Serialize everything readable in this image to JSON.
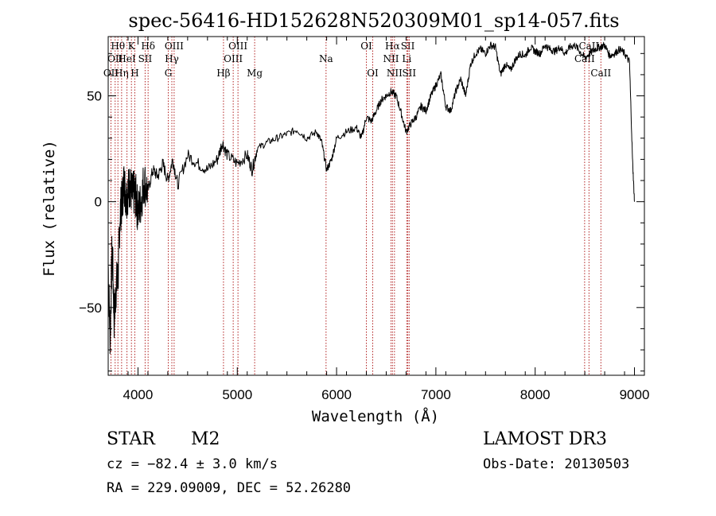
{
  "chart_data": {
    "type": "line",
    "title": "spec-56416-HD152628N520309M01_sp14-057.fits",
    "xlabel": "Wavelength (Å)",
    "ylabel": "Flux (relative)",
    "xlim": [
      3700,
      9100
    ],
    "ylim": [
      -82,
      78
    ],
    "xticks": [
      4000,
      5000,
      6000,
      7000,
      8000,
      9000
    ],
    "yticks": [
      -50,
      0,
      50
    ],
    "grid": false,
    "line_color": "#000000",
    "marker_color": "#b22222",
    "series": [
      {
        "x": [
          3700,
          3720,
          3740,
          3760,
          3780,
          3800,
          3820,
          3840,
          3860,
          3880,
          3900,
          3920,
          3940,
          3960,
          3980,
          4000,
          4030,
          4060,
          4100,
          4150,
          4200,
          4250,
          4300,
          4350,
          4400,
          4500,
          4600,
          4700,
          4800,
          4850,
          4900,
          5000,
          5100,
          5150,
          5200,
          5300,
          5400,
          5500,
          5600,
          5700,
          5800,
          5850,
          5900,
          5950,
          6000,
          6100,
          6200,
          6250,
          6300,
          6350,
          6400,
          6450,
          6500,
          6550,
          6600,
          6650,
          6700,
          6750,
          6800,
          6850,
          6900,
          6950,
          7000,
          7050,
          7100,
          7150,
          7200,
          7250,
          7300,
          7350,
          7400,
          7450,
          7500,
          7550,
          7600,
          7650,
          7700,
          7750,
          7800,
          7850,
          7900,
          7950,
          8000,
          8050,
          8100,
          8150,
          8200,
          8250,
          8300,
          8350,
          8400,
          8450,
          8500,
          8550,
          8600,
          8650,
          8700,
          8750,
          8800,
          8850,
          8900,
          8950,
          8980,
          9000
        ],
        "y": [
          -30,
          -65,
          -20,
          -55,
          -40,
          -35,
          -5,
          0,
          10,
          2,
          5,
          8,
          3,
          4,
          2,
          -5,
          0,
          10,
          5,
          15,
          12,
          18,
          10,
          20,
          8,
          22,
          18,
          15,
          20,
          28,
          22,
          18,
          22,
          15,
          25,
          28,
          30,
          32,
          34,
          30,
          33,
          28,
          15,
          20,
          30,
          33,
          35,
          30,
          40,
          38,
          43,
          48,
          50,
          52,
          50,
          42,
          33,
          37,
          40,
          45,
          43,
          50,
          55,
          60,
          45,
          43,
          52,
          58,
          50,
          65,
          70,
          72,
          70,
          74,
          73,
          60,
          65,
          62,
          67,
          70,
          69,
          73,
          71,
          70,
          74,
          72,
          71,
          73,
          70,
          73,
          74,
          71,
          68,
          70,
          72,
          73,
          74,
          69,
          70,
          72,
          70,
          66,
          20,
          0
        ]
      }
    ],
    "lines": [
      {
        "x": 3728,
        "label": "OII",
        "row": 3
      },
      {
        "x": 3770,
        "label": "OII",
        "row": 2
      },
      {
        "x": 3798,
        "label": "Hθ",
        "row": 1
      },
      {
        "x": 3835,
        "label": "Hη",
        "row": 3
      },
      {
        "x": 3889,
        "label": "HeI",
        "row": 2
      },
      {
        "x": 3934,
        "label": "K",
        "row": 1
      },
      {
        "x": 3968,
        "label": "H",
        "row": 3
      },
      {
        "x": 4072,
        "label": "SII",
        "row": 2
      },
      {
        "x": 4102,
        "label": "Hδ",
        "row": 1
      },
      {
        "x": 4305,
        "label": "G",
        "row": 3
      },
      {
        "x": 4341,
        "label": "Hγ",
        "row": 2
      },
      {
        "x": 4364,
        "label": "OIII",
        "row": 1
      },
      {
        "x": 4861,
        "label": "Hβ",
        "row": 3
      },
      {
        "x": 4959,
        "label": "OIII",
        "row": 2
      },
      {
        "x": 5007,
        "label": "OIII",
        "row": 1
      },
      {
        "x": 5175,
        "label": "Mg",
        "row": 3
      },
      {
        "x": 5894,
        "label": "Na",
        "row": 2
      },
      {
        "x": 6300,
        "label": "OI",
        "row": 1
      },
      {
        "x": 6364,
        "label": "OI",
        "row": 3
      },
      {
        "x": 6548,
        "label": "NII",
        "row": 2
      },
      {
        "x": 6563,
        "label": "Hα",
        "row": 1
      },
      {
        "x": 6583,
        "label": "NII",
        "row": 3
      },
      {
        "x": 6707,
        "label": "Li",
        "row": 2
      },
      {
        "x": 6717,
        "label": "SII",
        "row": 1
      },
      {
        "x": 6731,
        "label": "SII",
        "row": 3
      },
      {
        "x": 8498,
        "label": "CaII",
        "row": 2
      },
      {
        "x": 8542,
        "label": "CaII",
        "row": 1
      },
      {
        "x": 8662,
        "label": "CaII",
        "row": 3
      }
    ]
  },
  "info": {
    "class_label": "STAR",
    "subclass_label": "M2",
    "survey_label": "LAMOST DR3",
    "cz_text": "cz = −82.4 ± 3.0 km/s",
    "obs_date_text": "Obs-Date: 20130503",
    "coords_text": "RA = 229.09009, DEC =  52.26280"
  }
}
